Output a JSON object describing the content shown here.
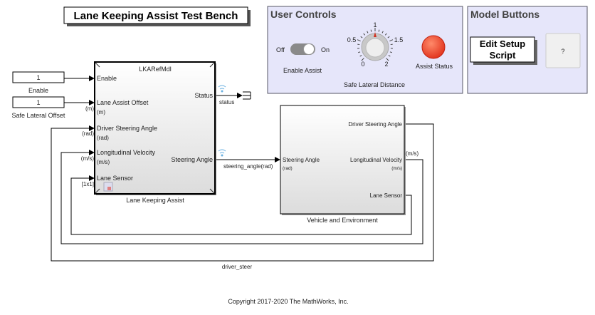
{
  "title": "Lane Keeping Assist Test Bench",
  "user_controls": {
    "heading": "User Controls",
    "toggle": {
      "off_label": "Off",
      "on_label": "On",
      "label": "Enable Assist",
      "state": "on"
    },
    "knob": {
      "ticks": [
        "0",
        "0.5",
        "1",
        "1.5",
        "2"
      ],
      "value": 1,
      "label": "Safe Lateral Distance"
    },
    "lamp": {
      "label": "Assist Status",
      "color": "#f04a2e"
    }
  },
  "model_buttons": {
    "heading": "Model Buttons",
    "edit_setup_line1": "Edit Setup",
    "edit_setup_line2": "Script",
    "help_label": "?"
  },
  "constants": [
    {
      "value": "1",
      "label": "Enable"
    },
    {
      "value": "1",
      "label": "Safe Lateral Offset"
    }
  ],
  "lka_block": {
    "model_name": "LKARefMdl",
    "label": "Lane Keeping Assist",
    "inputs": [
      {
        "name": "Enable",
        "unit": "",
        "signal_unit": ""
      },
      {
        "name": "Lane Assist Offset",
        "unit": "(m)",
        "signal_unit": "(m)"
      },
      {
        "name": "Driver Steering Angle",
        "unit": "(rad)",
        "signal_unit": "(rad)"
      },
      {
        "name": "Longitudinal Velocity",
        "unit": "(m/s)",
        "signal_unit": "(m/s)"
      },
      {
        "name": "Lane Sensor",
        "unit": "",
        "signal_unit": "[1x1]"
      }
    ],
    "outputs": [
      {
        "name": "Status",
        "signal": "status"
      },
      {
        "name": "Steering Angle",
        "signal": "steering_angle(rad)"
      }
    ]
  },
  "vehicle_block": {
    "label": "Vehicle and Environment",
    "input": {
      "name": "Steering Angle",
      "unit": "(rad)"
    },
    "outputs": [
      {
        "name": "Driver Steering Angle",
        "unit": ""
      },
      {
        "name": "Longitudinal Velocity",
        "unit": "(m/s)",
        "signal_unit": "(m/s)"
      },
      {
        "name": "Lane Sensor",
        "unit": ""
      }
    ]
  },
  "feedback_signal": "driver_steer",
  "copyright": "Copyright 2017-2020 The MathWorks, Inc.",
  "colors": {
    "panel": "#e6e6fa",
    "panel_border": "#555566"
  }
}
